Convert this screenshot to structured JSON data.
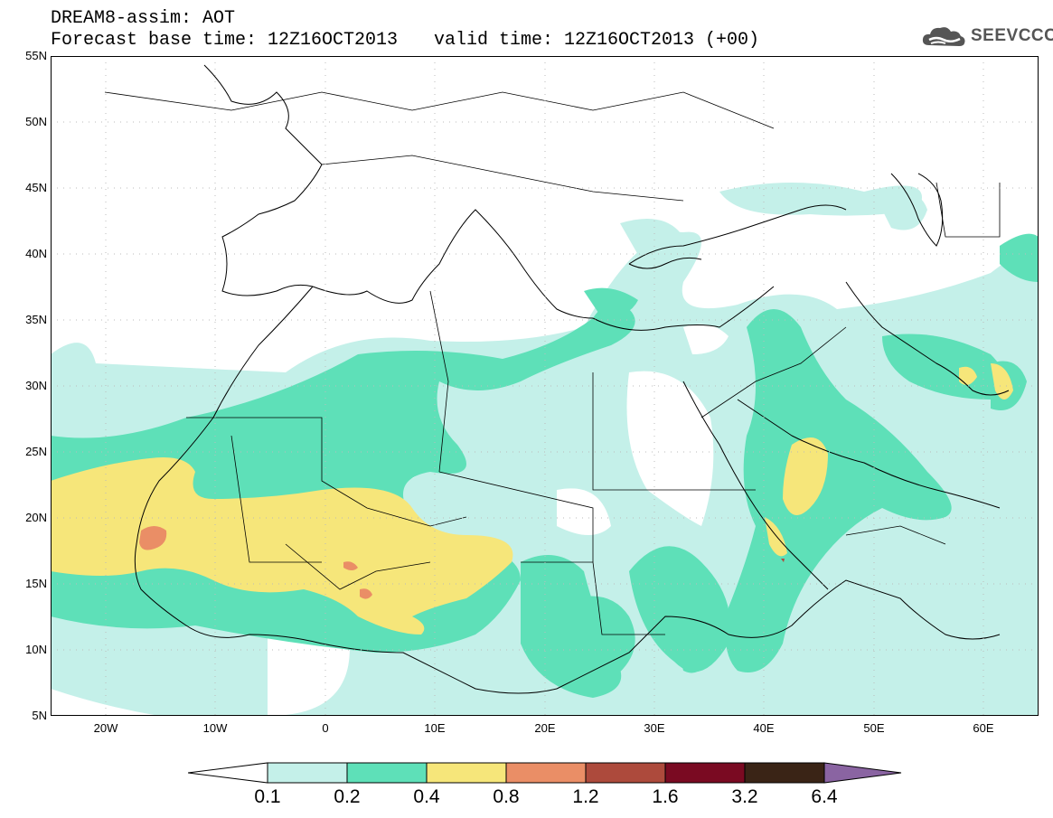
{
  "header": {
    "line1": "DREAM8-assim: AOT",
    "line2a": "Forecast base time: 12Z16OCT2013",
    "line2b": "valid time: 12Z16OCT2013 (+00)"
  },
  "logo": {
    "text": "SEEVCCC",
    "icon": "cloud-icon"
  },
  "map": {
    "lon_range": [
      -25,
      65
    ],
    "lat_range": [
      5,
      55
    ],
    "y_ticks": [
      "55N",
      "50N",
      "45N",
      "40N",
      "35N",
      "30N",
      "25N",
      "20N",
      "15N",
      "10N",
      "5N"
    ],
    "x_ticks": [
      "20W",
      "10W",
      "0",
      "10E",
      "20E",
      "30E",
      "40E",
      "50E",
      "60E"
    ],
    "field": "Aerosol Optical Thickness"
  },
  "colorbar": {
    "labels": [
      "0.1",
      "0.2",
      "0.4",
      "0.8",
      "1.2",
      "1.6",
      "3.2",
      "6.4"
    ],
    "colors": [
      "#ffffff",
      "#c4f0e9",
      "#5ee0b8",
      "#f6e67a",
      "#ea8e66",
      "#ad4a3c",
      "#7a0a22",
      "#3a2416",
      "#8a64a2"
    ]
  }
}
